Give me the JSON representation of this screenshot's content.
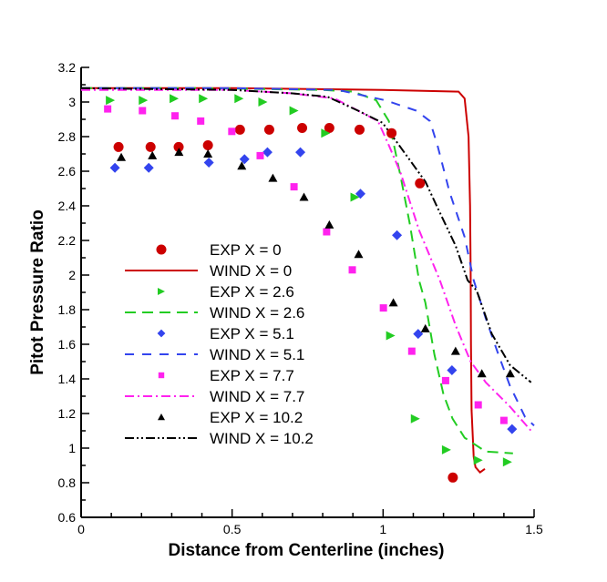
{
  "chart_data": {
    "type": "scatter",
    "title": "",
    "xlabel": "Distance from Centerline (inches)",
    "ylabel": "Pitot Pressure Ratio",
    "xlim": [
      0,
      1.5
    ],
    "ylim": [
      0.6,
      3.2
    ],
    "xticks": [
      0,
      0.5,
      1,
      1.5
    ],
    "xtick_labels": [
      "0",
      "0.5",
      "1",
      "1.5"
    ],
    "yticks": [
      0.6,
      0.8,
      1,
      1.2,
      1.4,
      1.6,
      1.8,
      2,
      2.2,
      2.4,
      2.6,
      2.8,
      3,
      3.2
    ],
    "ytick_labels": [
      "0.6",
      "0.8",
      "1",
      "1.2",
      "1.4",
      "1.6",
      "1.8",
      "2",
      "2.2",
      "2.4",
      "2.6",
      "2.8",
      "3",
      "3.2"
    ],
    "grid": false,
    "legend_placement": "center-left",
    "series": [
      {
        "name": "EXP X = 0",
        "kind": "marker",
        "marker": "circle",
        "color": "#cc0000",
        "x": [
          0.124,
          0.23,
          0.323,
          0.42,
          0.526,
          0.623,
          0.732,
          0.822,
          0.922,
          1.028,
          1.122,
          1.231
        ],
        "y": [
          2.74,
          2.74,
          2.74,
          2.75,
          2.84,
          2.84,
          2.85,
          2.85,
          2.84,
          2.82,
          2.53,
          0.83
        ]
      },
      {
        "name": "WIND X = 0",
        "kind": "line",
        "dash": "solid",
        "color": "#cc0000",
        "x": [
          0,
          0.5,
          1.0,
          1.25,
          1.27,
          1.283,
          1.288,
          1.29,
          1.291,
          1.293,
          1.3,
          1.306,
          1.321,
          1.337
        ],
        "y": [
          3.08,
          3.08,
          3.07,
          3.06,
          3.02,
          2.8,
          2.4,
          2.01,
          1.6,
          1.22,
          0.95,
          0.89,
          0.86,
          0.88
        ]
      },
      {
        "name": "EXP X = 2.6",
        "kind": "marker",
        "marker": "triangle-right",
        "color": "#22cc22",
        "x": [
          0.097,
          0.206,
          0.308,
          0.405,
          0.523,
          0.602,
          0.705,
          0.81,
          0.907,
          1.025,
          1.107,
          1.21,
          1.315,
          1.412
        ],
        "y": [
          3.01,
          3.01,
          3.02,
          3.02,
          3.02,
          3.0,
          2.95,
          2.82,
          2.45,
          1.65,
          1.17,
          0.99,
          0.93,
          0.92
        ]
      },
      {
        "name": "WIND X = 2.6",
        "kind": "line",
        "dash": "long-dash",
        "color": "#22cc22",
        "x": [
          0,
          0.4,
          0.8,
          0.9,
          0.977,
          1.019,
          1.058,
          1.089,
          1.119,
          1.14,
          1.17,
          1.2,
          1.23,
          1.27,
          1.34,
          1.43
        ],
        "y": [
          3.08,
          3.08,
          3.07,
          3.06,
          3.01,
          2.89,
          2.57,
          2.29,
          1.97,
          1.84,
          1.54,
          1.31,
          1.17,
          1.06,
          0.98,
          0.97
        ]
      },
      {
        "name": "EXP X = 5.1",
        "kind": "marker",
        "marker": "diamond",
        "color": "#3344ee",
        "x": [
          0.112,
          0.224,
          0.423,
          0.541,
          0.617,
          0.726,
          0.925,
          1.046,
          1.116,
          1.228,
          1.427
        ],
        "y": [
          2.62,
          2.62,
          2.65,
          2.67,
          2.71,
          2.71,
          2.47,
          2.23,
          1.66,
          1.45,
          1.11
        ]
      },
      {
        "name": "WIND X = 5.1",
        "kind": "line",
        "dash": "dash",
        "color": "#3344ee",
        "x": [
          0,
          0.5,
          0.85,
          1.007,
          1.11,
          1.155,
          1.18,
          1.22,
          1.27,
          1.3,
          1.34,
          1.38,
          1.42,
          1.47,
          1.5
        ],
        "y": [
          3.08,
          3.08,
          3.07,
          3.01,
          2.95,
          2.89,
          2.75,
          2.48,
          2.22,
          1.97,
          1.75,
          1.55,
          1.36,
          1.18,
          1.13
        ]
      },
      {
        "name": "EXP X = 7.7",
        "kind": "marker",
        "marker": "square",
        "color": "#ff22ee",
        "x": [
          0.088,
          0.203,
          0.311,
          0.396,
          0.499,
          0.593,
          0.705,
          0.813,
          0.898,
          1.001,
          1.095,
          1.207,
          1.315,
          1.4
        ],
        "y": [
          2.96,
          2.95,
          2.92,
          2.89,
          2.83,
          2.69,
          2.51,
          2.25,
          2.03,
          1.81,
          1.56,
          1.39,
          1.25,
          1.16
        ]
      },
      {
        "name": "WIND X = 7.7",
        "kind": "line",
        "dash": "dash-dot",
        "color": "#ff22ee",
        "x": [
          0,
          0.5,
          0.7,
          0.84,
          0.917,
          0.983,
          1.019,
          1.058,
          1.119,
          1.188,
          1.24,
          1.29,
          1.34,
          1.42,
          1.49
        ],
        "y": [
          3.07,
          3.07,
          3.05,
          3.02,
          2.95,
          2.89,
          2.75,
          2.59,
          2.26,
          1.97,
          1.71,
          1.5,
          1.38,
          1.24,
          1.1
        ]
      },
      {
        "name": "EXP X = 10.2",
        "kind": "marker",
        "marker": "triangle-up",
        "color": "#000000",
        "x": [
          0.133,
          0.236,
          0.324,
          0.42,
          0.532,
          0.635,
          0.738,
          0.822,
          0.919,
          1.034,
          1.14,
          1.24,
          1.327,
          1.421
        ],
        "y": [
          2.68,
          2.69,
          2.71,
          2.7,
          2.63,
          2.56,
          2.45,
          2.29,
          2.12,
          1.84,
          1.69,
          1.56,
          1.43,
          1.43
        ]
      },
      {
        "name": "WIND X = 10.2",
        "kind": "line",
        "dash": "dash-dot-dot",
        "color": "#000000",
        "x": [
          0,
          0.5,
          0.7,
          0.816,
          0.917,
          0.998,
          1.049,
          1.14,
          1.18,
          1.24,
          1.28,
          1.31,
          1.36,
          1.42,
          1.49
        ],
        "y": [
          3.08,
          3.07,
          3.05,
          3.03,
          2.95,
          2.88,
          2.76,
          2.54,
          2.39,
          2.17,
          1.97,
          1.91,
          1.66,
          1.48,
          1.38
        ]
      }
    ]
  }
}
